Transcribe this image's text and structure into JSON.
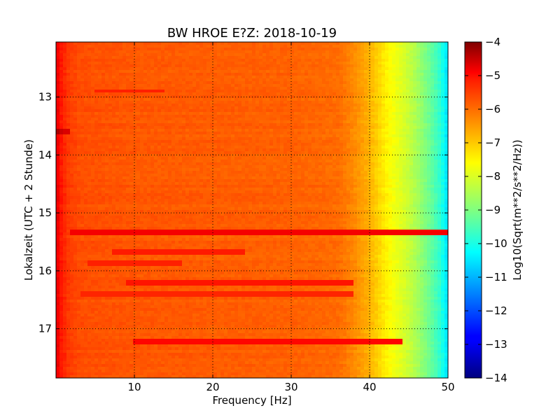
{
  "chart_data": {
    "type": "heatmap",
    "title": "BW HROE E?Z: 2018-10-19",
    "xlabel": "Frequency [Hz]",
    "ylabel": "Lokalzeit (UTC + 2 Stunde)",
    "colorbar_label": "Log10(Sqrt(m**2/s**2/Hz))",
    "colormap": "jet",
    "xlim": [
      0,
      50
    ],
    "ylim": [
      12.05,
      17.85
    ],
    "y_inverted": true,
    "grid": true,
    "x_ticks": [
      10,
      20,
      30,
      40,
      50
    ],
    "x_tick_labels": [
      "10",
      "20",
      "30",
      "40",
      "50"
    ],
    "y_ticks": [
      13,
      14,
      15,
      16,
      17
    ],
    "y_tick_labels": [
      "13",
      "14",
      "15",
      "16",
      "17"
    ],
    "colorbar_range": [
      -14,
      -4
    ],
    "colorbar_ticks": [
      -4,
      -5,
      -6,
      -7,
      -8,
      -9,
      -10,
      -11,
      -12,
      -13,
      -14
    ],
    "colorbar_tick_labels": [
      "−4",
      "−5",
      "−6",
      "−7",
      "−8",
      "−9",
      "−10",
      "−11",
      "−12",
      "−13",
      "−14"
    ],
    "spectrum_profile": {
      "frequency_hz": [
        0,
        0.5,
        1.5,
        3,
        6,
        10,
        20,
        30,
        36,
        38,
        40,
        41,
        42,
        43,
        44,
        45,
        46,
        47,
        48,
        49,
        49.5,
        50
      ],
      "level": [
        -5.0,
        -5.4,
        -5.8,
        -6.0,
        -6.05,
        -6.1,
        -6.15,
        -6.2,
        -6.3,
        -6.6,
        -7.0,
        -7.3,
        -7.6,
        -7.85,
        -8.05,
        -8.3,
        -8.6,
        -8.95,
        -9.35,
        -9.8,
        -10.2,
        -10.6
      ]
    },
    "strong_bands": [
      {
        "time": 15.35,
        "freq_range": [
          2,
          50
        ],
        "level": -5.15
      },
      {
        "time": 17.23,
        "freq_range": [
          10,
          44
        ],
        "level": -5.3
      },
      {
        "time": 16.22,
        "freq_range": [
          9,
          38
        ],
        "level": -5.45
      },
      {
        "time": 15.67,
        "freq_range": [
          7,
          24
        ],
        "level": -5.5
      },
      {
        "time": 15.86,
        "freq_range": [
          4,
          16
        ],
        "level": -5.55
      },
      {
        "time": 12.9,
        "freq_range": [
          5,
          14
        ],
        "level": -5.55
      },
      {
        "time": 13.6,
        "freq_range": [
          0,
          2
        ],
        "level": -4.9
      },
      {
        "time": 16.4,
        "freq_range": [
          3,
          38
        ],
        "level": -5.6
      }
    ]
  }
}
